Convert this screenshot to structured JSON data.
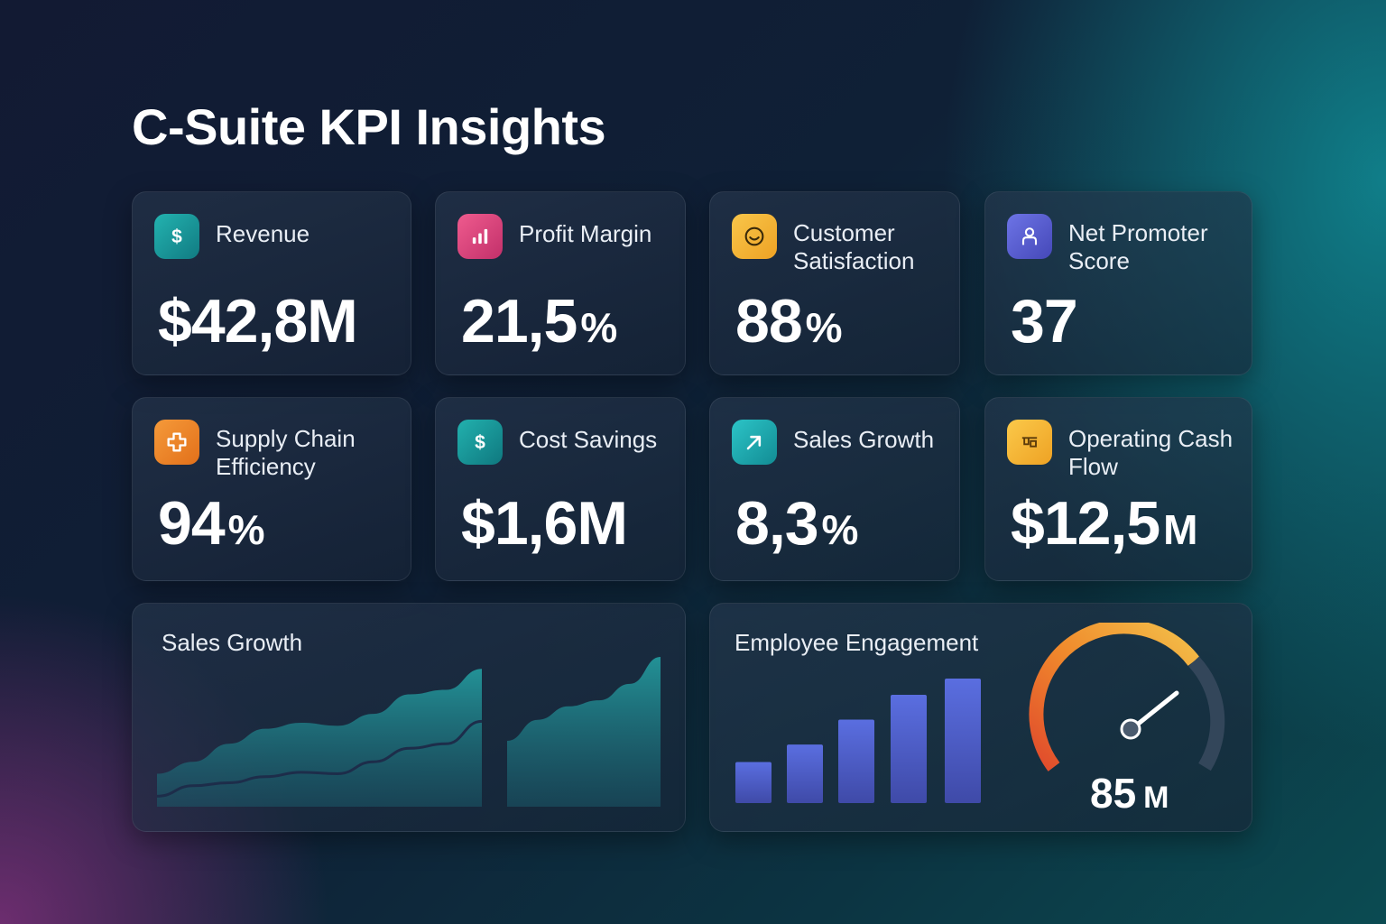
{
  "page": {
    "title": "C-Suite KPI Insights"
  },
  "colors": {
    "revenue_icon": "#1aa3a3",
    "profit_icon": "#e0457b",
    "satisfaction_icon": "#f4b537",
    "nps_icon": "#5a63d6",
    "supply_icon": "#ee8a2a",
    "cost_icon": "#18a0a0",
    "growth_icon": "#1cb0b6",
    "cashflow_icon": "#f6b93b",
    "area_fill": "#1f8a8f",
    "bar_fill": "#4f5fc8",
    "gauge_orange": "#f08a2c",
    "gauge_yellow": "#f2c04a",
    "gauge_track": "#33465a"
  },
  "kpis": [
    {
      "label": "Revenue",
      "value": "$42,8M",
      "unit": "",
      "icon": "dollar-icon"
    },
    {
      "label": "Profit Margin",
      "value": "21,5",
      "unit": "%",
      "icon": "bar-chart-icon"
    },
    {
      "label": "Customer Satisfaction",
      "value": "88",
      "unit": "%",
      "icon": "smile-icon"
    },
    {
      "label": "Net Promoter Score",
      "value": "37",
      "unit": "",
      "icon": "user-icon"
    },
    {
      "label": "Supply Chain Efficiency",
      "value": "94",
      "unit": "%",
      "icon": "box-icon"
    },
    {
      "label": "Cost Savings",
      "value": "$1,6M",
      "unit": "",
      "icon": "dollar-icon"
    },
    {
      "label": "Sales Growth",
      "value": "8,3",
      "unit": "%",
      "icon": "arrow-up-right-icon"
    },
    {
      "label": "Operating Cash Flow",
      "value": "$12,5",
      "unit": "M",
      "icon": "cash-icon"
    }
  ],
  "sales_panel": {
    "title": "Sales Growth"
  },
  "engagement_panel": {
    "title": "Employee Engagement",
    "gauge_value": "85",
    "gauge_unit": "M"
  },
  "chart_data": [
    {
      "type": "area",
      "title": "Sales Growth",
      "series": [
        {
          "values": [
            0.22,
            0.3,
            0.42,
            0.52,
            0.56,
            0.54,
            0.62,
            0.75,
            0.78,
            0.92
          ]
        },
        {
          "values": [
            0.07,
            0.14,
            0.16,
            0.2,
            0.23,
            0.22,
            0.3,
            0.39,
            0.42,
            0.57
          ]
        },
        {
          "values": [
            0.44,
            0.58,
            0.67,
            0.71,
            0.82,
            1.0
          ]
        }
      ],
      "ylim": [
        0,
        1
      ]
    },
    {
      "type": "bar",
      "title": "Employee Engagement",
      "values": [
        0.33,
        0.47,
        0.67,
        0.87,
        1.0
      ],
      "ylim": [
        0,
        1
      ]
    }
  ]
}
